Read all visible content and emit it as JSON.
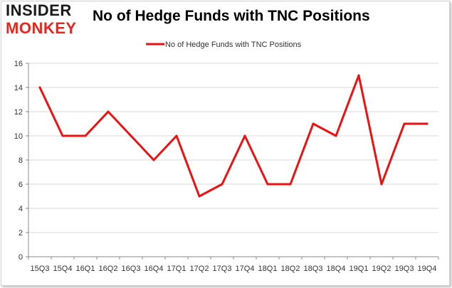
{
  "logo": {
    "line1": "INSIDER",
    "line2": "MONKEY"
  },
  "colors": {
    "series": "#ee1111",
    "grid": "#d9d9d9",
    "axis": "#888888",
    "logo_dark": "#1a1a1a",
    "logo_red": "#e5281f"
  },
  "chart_data": {
    "type": "line",
    "title": "No of Hedge Funds with TNC Positions",
    "xlabel": "",
    "ylabel": "",
    "categories": [
      "15Q3",
      "15Q4",
      "16Q1",
      "16Q2",
      "16Q3",
      "16Q4",
      "17Q1",
      "17Q2",
      "17Q3",
      "17Q4",
      "18Q1",
      "18Q2",
      "18Q3",
      "18Q4",
      "19Q1",
      "19Q2",
      "19Q3",
      "19Q4"
    ],
    "series": [
      {
        "name": "No of Hedge Funds with TNC Positions",
        "values": [
          14,
          10,
          10,
          12,
          10,
          8,
          10,
          5,
          6,
          10,
          6,
          6,
          11,
          10,
          15,
          6,
          11,
          11
        ]
      }
    ],
    "ylim": [
      0,
      16
    ],
    "yticks": [
      0,
      2,
      4,
      6,
      8,
      10,
      12,
      14,
      16
    ],
    "grid": true,
    "legend": "top-center"
  }
}
